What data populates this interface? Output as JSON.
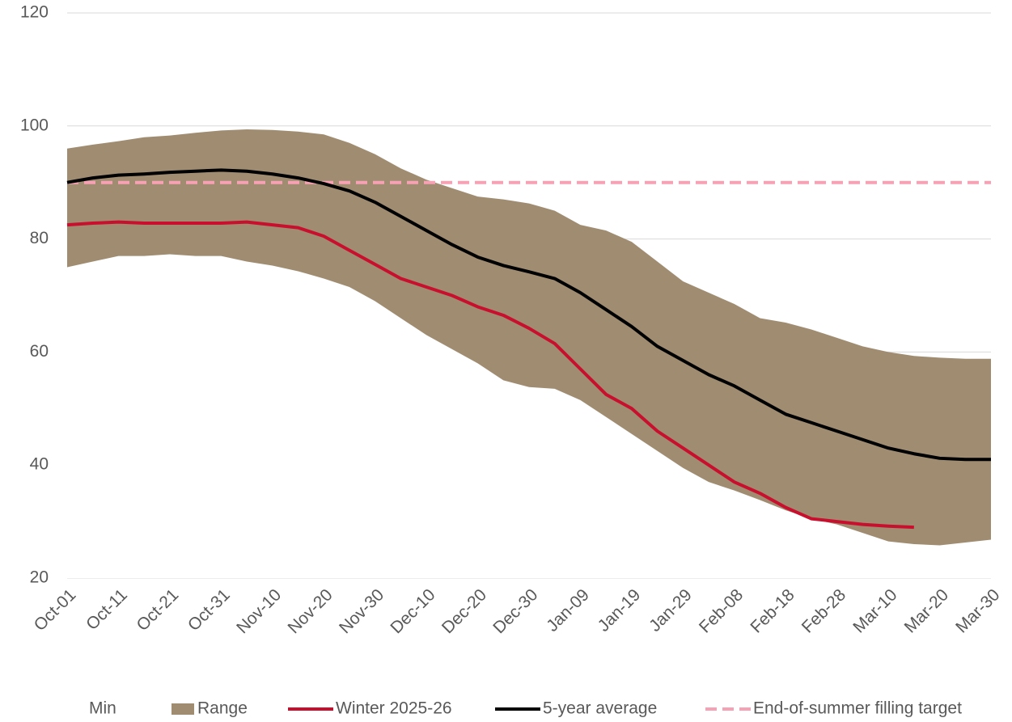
{
  "chart_data": {
    "type": "line",
    "categories": [
      "Oct-01",
      null,
      "Oct-11",
      null,
      "Oct-21",
      null,
      "Oct-31",
      null,
      "Nov-10",
      null,
      "Nov-20",
      null,
      "Nov-30",
      null,
      "Dec-10",
      null,
      "Dec-20",
      null,
      "Dec-30",
      null,
      "Jan-09",
      null,
      "Jan-19",
      null,
      "Jan-29",
      null,
      "Feb-08",
      null,
      "Feb-18",
      null,
      "Feb-28",
      null,
      "Mar-10",
      null,
      "Mar-20",
      null,
      "Mar-30"
    ],
    "series": [
      {
        "name": "Min",
        "type": "area",
        "stack": "band",
        "color": "#ffffff",
        "values": [
          75,
          76,
          77,
          77,
          77.3,
          77,
          77,
          76,
          75.3,
          74.3,
          73,
          71.5,
          69,
          66,
          63,
          60.5,
          58,
          55,
          53.8,
          53.5,
          51.5,
          48.5,
          45.5,
          42.5,
          39.5,
          37,
          35.5,
          33.8,
          32,
          30.5,
          29.5,
          28,
          26.5,
          26,
          25.8,
          26.3,
          26.8
        ]
      },
      {
        "name": "Range",
        "type": "area",
        "stack": "band",
        "color": "#a08c70",
        "values": [
          21,
          20.7,
          20.3,
          21,
          21,
          21.8,
          22.2,
          23.4,
          24,
          24.7,
          25.5,
          25.5,
          26,
          26.5,
          27.5,
          28.5,
          29.5,
          32,
          32.5,
          31.5,
          31,
          33,
          34,
          33.5,
          33,
          33.5,
          33,
          32.2,
          33.2,
          33.5,
          33,
          33,
          33.5,
          33.3,
          33.2,
          32.5,
          32
        ]
      },
      {
        "name": "Winter 2025-26",
        "type": "line",
        "color": "#c8102e",
        "values": [
          82.5,
          82.8,
          83,
          82.8,
          82.8,
          82.8,
          82.8,
          83,
          82.5,
          82,
          80.5,
          78,
          75.5,
          73,
          71.5,
          70,
          68,
          66.5,
          64.2,
          61.5,
          57,
          52.5,
          50,
          46,
          43,
          40,
          37,
          35,
          32.5,
          30.5,
          30,
          29.5,
          29.2,
          29,
          null,
          null,
          null
        ]
      },
      {
        "name": "5-year average",
        "type": "line",
        "color": "#000000",
        "values": [
          90,
          90.8,
          91.3,
          91.5,
          91.8,
          92,
          92.2,
          92,
          91.5,
          90.8,
          89.8,
          88.5,
          86.5,
          84,
          81.5,
          79,
          76.8,
          75.3,
          74.2,
          73,
          70.5,
          67.5,
          64.5,
          61,
          58.5,
          56,
          54,
          51.5,
          49,
          47.5,
          46,
          44.5,
          43,
          42,
          41.2,
          41,
          41
        ]
      },
      {
        "name": "End-of-summer filling target",
        "type": "line",
        "dashed": true,
        "color": "#f7a1b5",
        "values": [
          90,
          90,
          90,
          90,
          90,
          90,
          90,
          90,
          90,
          90,
          90,
          90,
          90,
          90,
          90,
          90,
          90,
          90,
          90,
          90,
          90,
          90,
          90,
          90,
          90,
          90,
          90,
          90,
          90,
          90,
          90,
          90,
          90,
          90,
          90,
          90,
          90
        ]
      }
    ],
    "ylim": [
      20,
      120
    ],
    "yticks": [
      20,
      40,
      60,
      80,
      100,
      120
    ],
    "grid": true,
    "legend": "bottom"
  }
}
